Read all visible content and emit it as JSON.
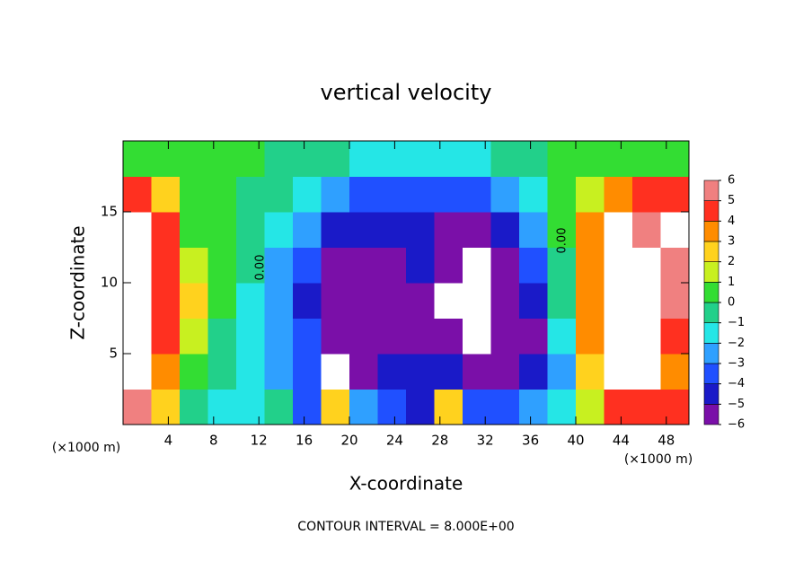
{
  "chart_data": {
    "type": "heatmap",
    "title": "vertical velocity",
    "x_label": "X-coordinate",
    "y_label": "Z-coordinate",
    "x_unit_left": "(×1000 m)",
    "x_unit_right": "(×1000 m)",
    "footer": "CONTOUR INTERVAL = 8.000E+00",
    "contour_labels": [
      "0.00",
      "0.00"
    ],
    "xlim": [
      0,
      50
    ],
    "ylim": [
      0,
      20
    ],
    "xticks": [
      4,
      8,
      12,
      16,
      20,
      24,
      28,
      32,
      36,
      40,
      44,
      48
    ],
    "yticks": [
      5,
      10,
      15
    ],
    "x": [
      1.25,
      3.75,
      6.25,
      8.75,
      11.25,
      13.75,
      16.25,
      18.75,
      21.25,
      23.75,
      26.25,
      28.75,
      31.25,
      33.75,
      36.25,
      38.75,
      41.25,
      43.75,
      46.25,
      48.75
    ],
    "y": [
      1.25,
      3.75,
      6.25,
      8.75,
      11.25,
      13.75,
      16.25,
      18.75
    ],
    "z": [
      [
        6,
        3,
        0,
        -1,
        -1,
        0,
        -3,
        3,
        -2,
        -3,
        -4,
        3,
        -3,
        -3,
        -2,
        -1,
        2,
        5,
        5,
        5
      ],
      [
        7,
        4,
        1,
        0,
        -1,
        -2,
        -3,
        -7,
        -5,
        -4,
        -4,
        -4.5,
        -6,
        -5,
        -4,
        -2,
        3,
        7,
        7,
        4
      ],
      [
        7,
        5,
        2,
        0,
        -1,
        -2,
        -3.5,
        -5,
        -5,
        -5,
        -5,
        -6,
        -7,
        -6,
        -5,
        -1,
        4,
        7,
        7,
        5
      ],
      [
        7,
        5,
        3,
        0.5,
        -1,
        -2.5,
        -4,
        -5.5,
        -6,
        -5.5,
        -5,
        -6.5,
        -7,
        -6,
        -4,
        0,
        4,
        7,
        7,
        6
      ],
      [
        7,
        5,
        2,
        0.5,
        0,
        -2,
        -3.5,
        -5,
        -5.5,
        -5,
        -4.5,
        -6,
        -7,
        -5,
        -3,
        0,
        4,
        7,
        7,
        6
      ],
      [
        7,
        5,
        1,
        0.5,
        0,
        -1,
        -2.5,
        -4,
        -4.5,
        -4.5,
        -4,
        -5,
        -5,
        -4,
        -2,
        0.5,
        4,
        7,
        6,
        7
      ],
      [
        5,
        3,
        1,
        0.5,
        0,
        -0.5,
        -1,
        -2,
        -3,
        -3.5,
        -3,
        -3,
        -3,
        -2.5,
        -1,
        0.5,
        1.5,
        4,
        5,
        5
      ],
      [
        1,
        0.5,
        0.5,
        0.5,
        0.5,
        0,
        0,
        -0.5,
        -1,
        -1.5,
        -1.5,
        -1,
        -1,
        -0.5,
        0,
        0.5,
        0.5,
        1,
        0.5,
        0.5
      ]
    ],
    "colorbar": {
      "levels": [
        {
          "value": -6,
          "label": "−6"
        },
        {
          "value": -5,
          "label": "−5"
        },
        {
          "value": -4,
          "label": "−4"
        },
        {
          "value": -3,
          "label": "−3"
        },
        {
          "value": -2,
          "label": "−2"
        },
        {
          "value": -1,
          "label": "−1"
        },
        0,
        1,
        2,
        3,
        4,
        5,
        6
      ],
      "colors": [
        "#7a0fa8",
        "#1a1ac8",
        "#2050ff",
        "#2fa0ff",
        "#25e6e6",
        "#22d08a",
        "#33dd33",
        "#c8f020",
        "#ffd21e",
        "#ff8c00",
        "#ff3020",
        "#f08080"
      ],
      "out_of_range_color": "#ffffff"
    }
  }
}
